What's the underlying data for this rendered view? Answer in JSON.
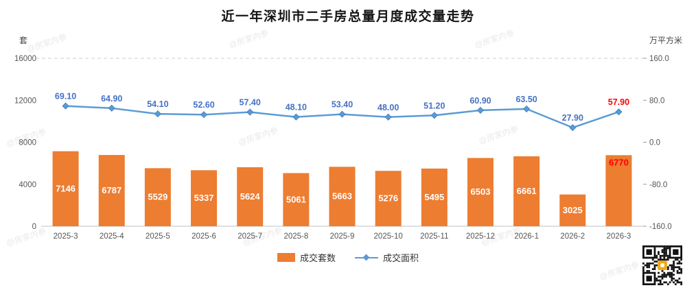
{
  "title": "近一年深圳市二手房总量月度成交量走势",
  "left_axis": {
    "unit": "套",
    "ticks": [
      0,
      4000,
      8000,
      12000,
      16000
    ]
  },
  "right_axis": {
    "unit": "万平方米",
    "ticks": [
      -160,
      -80,
      0,
      80,
      160
    ]
  },
  "chart_data": {
    "type": "bar",
    "subtype": "bar+line combo",
    "title": "近一年深圳市二手房总量月度成交量走势",
    "categories": [
      "2025-3",
      "2025-4",
      "2025-5",
      "2025-6",
      "2025-7",
      "2025-8",
      "2025-9",
      "2025-10",
      "2025-11",
      "2025-12",
      "2026-1",
      "2026-2",
      "2026-3"
    ],
    "series": [
      {
        "name": "成交套数",
        "type": "bar",
        "axis": "left",
        "color": "#ED7D31",
        "label_color": "#FFFFFF",
        "values": [
          7146,
          6787,
          5529,
          5337,
          5624,
          5061,
          5663,
          5276,
          5495,
          6503,
          6661,
          3025,
          6770
        ]
      },
      {
        "name": "成交面积",
        "type": "line",
        "axis": "right",
        "color": "#5B9BD5",
        "label_color": "#4472C4",
        "values": [
          69.1,
          64.9,
          54.1,
          52.6,
          57.4,
          48.1,
          53.4,
          48.0,
          51.2,
          60.9,
          63.5,
          27.9,
          57.9
        ]
      }
    ],
    "left_ylim": [
      0,
      16000
    ],
    "right_ylim": [
      -160,
      160
    ],
    "highlight_last": true,
    "highlight_color": "#FF0000",
    "grid": "dashed line at top tick only",
    "legend_position": "bottom"
  },
  "legend": [
    {
      "label": "成交套数"
    },
    {
      "label": "成交面积"
    }
  ],
  "watermark": "@房家内参"
}
